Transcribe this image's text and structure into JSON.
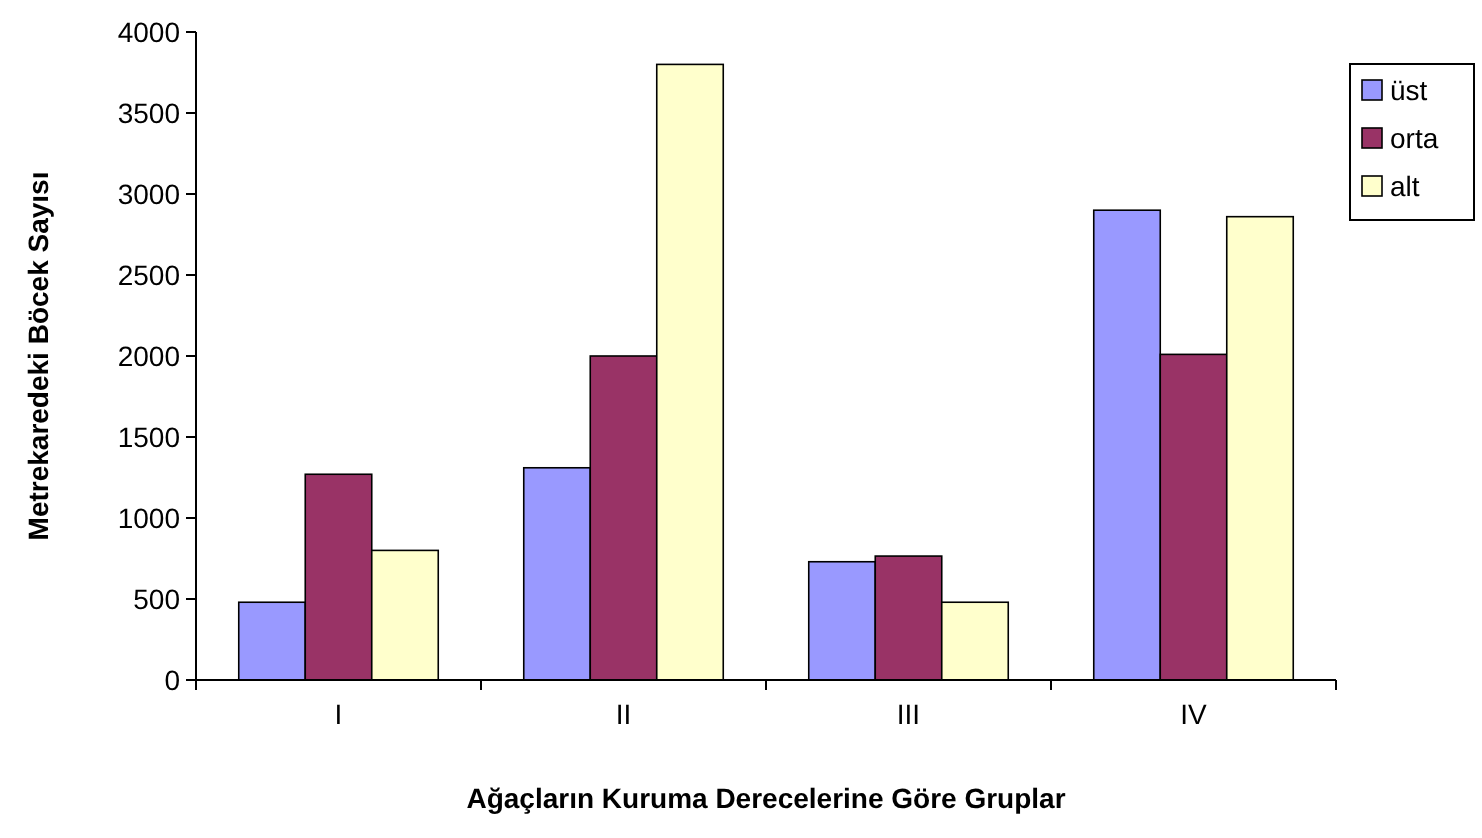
{
  "chart_data": {
    "type": "bar",
    "xlabel": "Ağaçların Kuruma Derecelerine Göre Gruplar",
    "ylabel": "Metrekaredeki Böcek Sayısı",
    "categories": [
      "I",
      "II",
      "III",
      "IV"
    ],
    "series": [
      {
        "name": "üst",
        "color": "#9999ff",
        "values": [
          480,
          1310,
          730,
          2900
        ]
      },
      {
        "name": "orta",
        "color": "#993366",
        "values": [
          1270,
          2000,
          765,
          2010
        ]
      },
      {
        "name": "alt",
        "color": "#ffffcc",
        "values": [
          800,
          3800,
          480,
          2860
        ]
      }
    ],
    "ylim": [
      0,
      4000
    ],
    "yticks": [
      0,
      500,
      1000,
      1500,
      2000,
      2500,
      3000,
      3500,
      4000
    ],
    "legend": "top right"
  }
}
